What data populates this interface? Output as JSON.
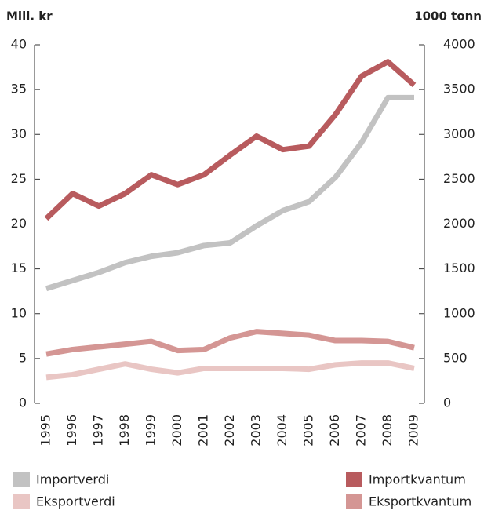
{
  "chart_data": {
    "type": "line",
    "y_label": "Mill. kr",
    "y2_label": "1000 tonn",
    "categories": [
      "1995",
      "1996",
      "1997",
      "1998",
      "1999",
      "2000",
      "2001",
      "2002",
      "2003",
      "2004",
      "2005",
      "2006",
      "2007",
      "2008",
      "2009"
    ],
    "series": [
      {
        "name": "Importverdi",
        "color": "#c2c2c2",
        "values": [
          12.8,
          13.7,
          14.6,
          15.7,
          16.4,
          16.8,
          17.6,
          17.9,
          19.8,
          21.5,
          22.5,
          25.2,
          29.1,
          34.1,
          34.1
        ]
      },
      {
        "name": "Eksportverdi",
        "color": "#e9c6c4",
        "values": [
          2.9,
          3.2,
          3.8,
          4.4,
          3.8,
          3.4,
          3.9,
          3.9,
          3.9,
          3.9,
          3.8,
          4.3,
          4.5,
          4.5,
          3.9
        ]
      },
      {
        "name": "Importkvantum",
        "color": "#b85b5e",
        "axis": "y2",
        "values": [
          2060,
          2340,
          2200,
          2340,
          2550,
          2440,
          2550,
          2770,
          2980,
          2830,
          2870,
          3220,
          3650,
          3810,
          3550
        ]
      },
      {
        "name": "Eksportkvantum",
        "color": "#d49694",
        "axis": "y2",
        "values": [
          550,
          600,
          630,
          660,
          690,
          590,
          600,
          730,
          800,
          780,
          760,
          700,
          700,
          690,
          620
        ]
      }
    ],
    "ylim": [
      0,
      40
    ],
    "yticks": [
      0,
      5,
      10,
      15,
      20,
      25,
      30,
      35,
      40
    ],
    "y2lim": [
      0,
      4000
    ],
    "y2ticks": [
      0,
      500,
      1000,
      1500,
      2000,
      2500,
      3000,
      3500,
      4000
    ]
  }
}
